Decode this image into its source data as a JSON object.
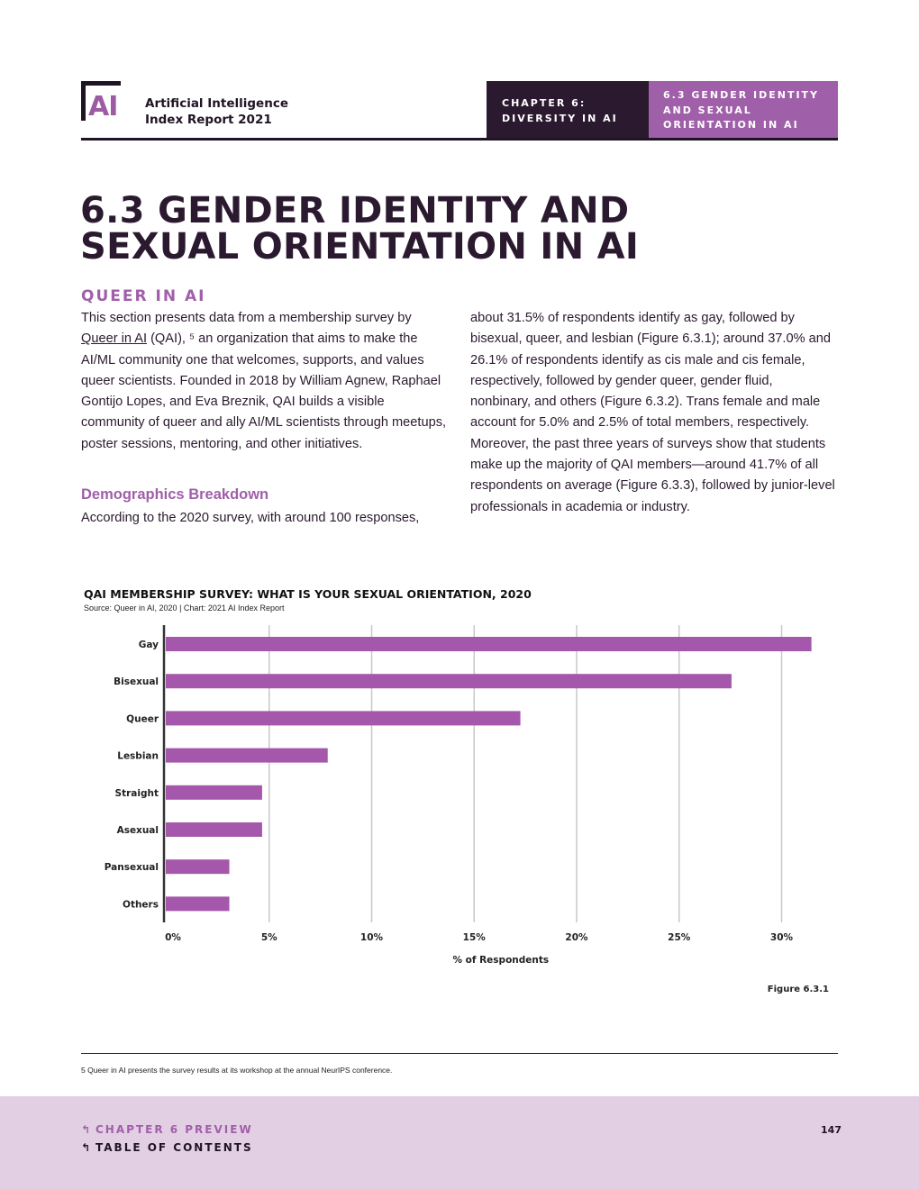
{
  "header": {
    "logo_text": "AI",
    "report_title_line1": "Artificial Intelligence",
    "report_title_line2": "Index Report 2021",
    "chapter_line1": "CHAPTER 6:",
    "chapter_line2": "DIVERSITY IN AI",
    "section_line1": "6.3 GENDER IDENTITY",
    "section_line2": "AND SEXUAL",
    "section_line3": "ORIENTATION IN AI"
  },
  "title": {
    "line1": "6.3 GENDER IDENTITY AND",
    "line2": "SEXUAL ORIENTATION IN AI"
  },
  "queer": {
    "heading": "QUEER IN AI",
    "p1_before_link": "This section presents data from a membership survey by ",
    "p1_link": "Queer in AI",
    "p1_after_link": " (QAI), ⁵ an organization that aims to make the AI/ML community one that welcomes, supports, and values queer scientists. Founded in 2018 by William Agnew, Raphael Gontijo Lopes, and Eva Breznik, QAI builds a visible community of queer and ally AI/ML scientists through meetups, poster sessions, mentoring, and other initiatives.",
    "demographics_heading": "Demographics Breakdown",
    "p2": "According to the 2020 survey, with around 100 responses,",
    "p3": "about 31.5% of respondents identify as gay, followed by bisexual, queer, and lesbian (Figure 6.3.1); around 37.0% and 26.1% of respondents identify as cis male and cis female, respectively, followed by gender queer, gender fluid, nonbinary, and others (Figure 6.3.2). Trans female and male account for 5.0% and 2.5% of total members, respectively. Moreover, the past three years of surveys show that students make up the majority of QAI members—around 41.7% of all respondents on average (Figure 6.3.3), followed by junior-level professionals in academia or industry."
  },
  "chart_title": "QAI MEMBERSHIP SURVEY: WHAT IS YOUR SEXUAL ORIENTATION, 2020",
  "chart_source": "Source: Queer in AI, 2020 | Chart: 2021 AI Index Report",
  "chart_data": {
    "type": "bar",
    "orientation": "horizontal",
    "categories": [
      "Gay",
      "Bisexual",
      "Queer",
      "Lesbian",
      "Straight",
      "Asexual",
      "Pansexual",
      "Others"
    ],
    "values": [
      31.5,
      27.6,
      17.3,
      7.9,
      4.7,
      4.7,
      3.1,
      3.1
    ],
    "xlabel": "% of Respondents",
    "xlim": [
      0,
      32
    ],
    "ticks": [
      0,
      5,
      10,
      15,
      20,
      25,
      30
    ],
    "tick_labels": [
      "0%",
      "5%",
      "10%",
      "15%",
      "20%",
      "25%",
      "30%"
    ],
    "grid": true,
    "bar_color": "#a557ab"
  },
  "figure_label": "Figure 6.3.1",
  "footnote": "5  Queer in AI presents the survey results at its workshop at the annual NeurIPS conference.",
  "footer": {
    "preview_link": "CHAPTER 6 PREVIEW",
    "toc_link": "TABLE OF CONTENTS",
    "page_number": "147",
    "return_icon": "↰"
  },
  "colors": {
    "accent": "#a05fa9",
    "dark": "#2b1a2f",
    "footer_bg": "#e3cfe3"
  }
}
